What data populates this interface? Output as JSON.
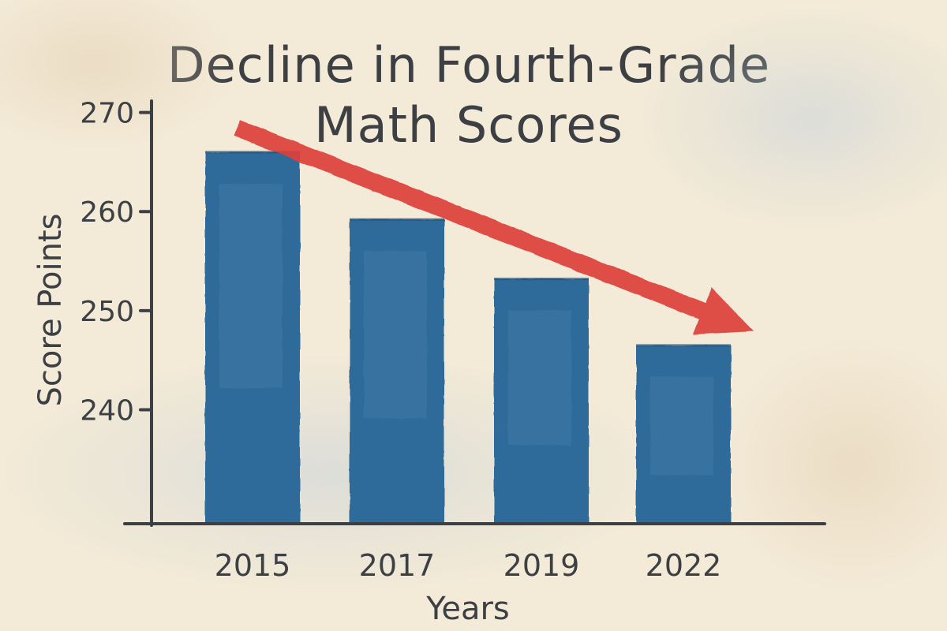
{
  "chart_data": {
    "type": "bar",
    "title_lines": [
      "Decline in Fourth-Grade",
      "Math Scores"
    ],
    "xlabel": "Years",
    "ylabel": "Score Points",
    "categories": [
      "2015",
      "2017",
      "2019",
      "2022"
    ],
    "values": [
      266,
      259.2,
      253.2,
      246.5
    ],
    "yticks": [
      240,
      250,
      260,
      270
    ],
    "ylim": [
      228.5,
      271
    ],
    "grid": false,
    "legend": "none",
    "trend_arrow": "downward",
    "colors": {
      "bar": "#2f6b9a",
      "bar_light": "#4f88b3",
      "arrow": "#de3f3b",
      "axis": "#3c3f43",
      "background": "#f3ead7"
    }
  }
}
